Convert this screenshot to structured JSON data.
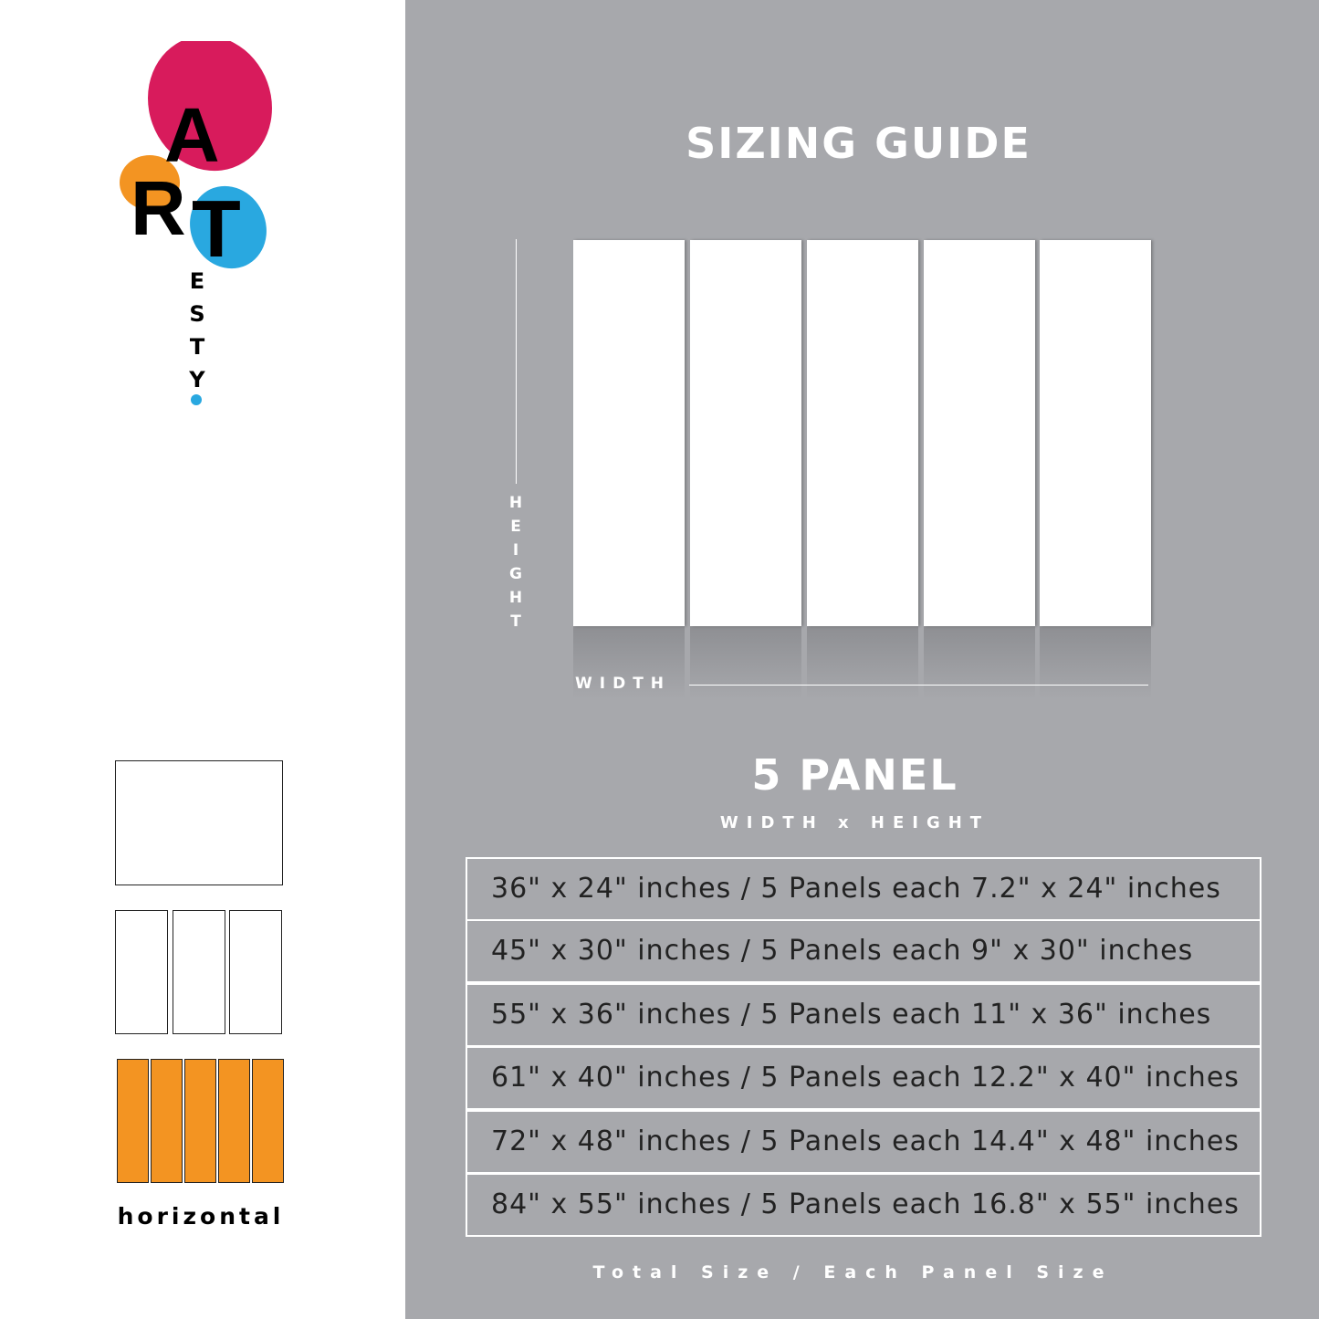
{
  "logo": {
    "letters": [
      "A",
      "R",
      "T"
    ],
    "sub": [
      "E",
      "S",
      "T",
      "Y"
    ],
    "colors": {
      "magenta": "#d81b5c",
      "orange": "#f39422",
      "blue": "#29a8e0"
    }
  },
  "header": {
    "title": "SIZING GUIDE"
  },
  "diagram": {
    "height_label": [
      "H",
      "E",
      "I",
      "G",
      "H",
      "T"
    ],
    "width_label": "WIDTH",
    "panel_count": 5
  },
  "product": {
    "name": "5 PANEL",
    "dims_label": "WIDTH x HEIGHT"
  },
  "sizes": [
    "36\" x 24\" inches / 5 Panels each 7.2\" x 24\" inches",
    "45\" x 30\" inches / 5 Panels each 9\" x 30\" inches",
    "55\" x 36\" inches / 5 Panels each 11\" x 36\" inches",
    "61\" x 40\" inches / 5 Panels each 12.2\" x 40\" inches",
    "72\" x 48\" inches / 5 Panels each 14.4\" x 48\" inches",
    "84\" x 55\" inches / 5 Panels each 16.8\" x 55\" inches"
  ],
  "footer": "Total Size / Each Panel Size",
  "layouts": {
    "selected_label": "horizontal",
    "accent": "#f39422"
  },
  "background": "#a7a8ac"
}
